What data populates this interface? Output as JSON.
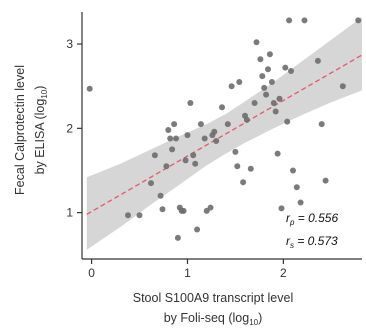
{
  "chart_data": {
    "type": "scatter",
    "xlabel_line1": "Stool S100A9 transcript level",
    "xlabel_line2": "by Foli-seq (log",
    "xlabel_sub": "10",
    "ylabel_line1": "Fecal Calprotectin level",
    "ylabel_line2": "by ELISA (log",
    "ylabel_sub": "10",
    "label_close": ")",
    "xlim": [
      -0.1,
      2.82
    ],
    "ylim": [
      0.45,
      3.38
    ],
    "x_ticks": [
      0,
      1,
      2
    ],
    "y_ticks": [
      1,
      2,
      3
    ],
    "grid": false,
    "points": [
      {
        "x": -0.02,
        "y": 2.47
      },
      {
        "x": 0.38,
        "y": 0.97
      },
      {
        "x": 0.5,
        "y": 0.97
      },
      {
        "x": 0.62,
        "y": 1.35
      },
      {
        "x": 0.66,
        "y": 1.68
      },
      {
        "x": 0.72,
        "y": 1.2
      },
      {
        "x": 0.74,
        "y": 1.04
      },
      {
        "x": 0.78,
        "y": 1.55
      },
      {
        "x": 0.8,
        "y": 1.98
      },
      {
        "x": 0.82,
        "y": 1.88
      },
      {
        "x": 0.84,
        "y": 1.75
      },
      {
        "x": 0.86,
        "y": 2.05
      },
      {
        "x": 0.88,
        "y": 1.88
      },
      {
        "x": 0.9,
        "y": 0.7
      },
      {
        "x": 0.92,
        "y": 1.06
      },
      {
        "x": 0.94,
        "y": 1.02
      },
      {
        "x": 0.96,
        "y": 1.02
      },
      {
        "x": 0.98,
        "y": 1.62
      },
      {
        "x": 1.0,
        "y": 1.92
      },
      {
        "x": 1.03,
        "y": 2.3
      },
      {
        "x": 1.06,
        "y": 1.68
      },
      {
        "x": 1.08,
        "y": 1.58
      },
      {
        "x": 1.1,
        "y": 0.8
      },
      {
        "x": 1.14,
        "y": 2.05
      },
      {
        "x": 1.18,
        "y": 1.88
      },
      {
        "x": 1.2,
        "y": 1.02
      },
      {
        "x": 1.24,
        "y": 1.06
      },
      {
        "x": 1.26,
        "y": 1.92
      },
      {
        "x": 1.28,
        "y": 1.96
      },
      {
        "x": 1.3,
        "y": 1.85
      },
      {
        "x": 1.36,
        "y": 2.25
      },
      {
        "x": 1.42,
        "y": 2.05
      },
      {
        "x": 1.46,
        "y": 2.5
      },
      {
        "x": 1.5,
        "y": 1.72
      },
      {
        "x": 1.52,
        "y": 1.55
      },
      {
        "x": 1.54,
        "y": 2.55
      },
      {
        "x": 1.58,
        "y": 1.36
      },
      {
        "x": 1.6,
        "y": 2.15
      },
      {
        "x": 1.62,
        "y": 2.1
      },
      {
        "x": 1.66,
        "y": 1.52
      },
      {
        "x": 1.7,
        "y": 2.3
      },
      {
        "x": 1.72,
        "y": 3.02
      },
      {
        "x": 1.76,
        "y": 2.82
      },
      {
        "x": 1.78,
        "y": 2.62
      },
      {
        "x": 1.8,
        "y": 2.48
      },
      {
        "x": 1.82,
        "y": 2.4
      },
      {
        "x": 1.84,
        "y": 2.7
      },
      {
        "x": 1.86,
        "y": 2.88
      },
      {
        "x": 1.88,
        "y": 2.55
      },
      {
        "x": 1.9,
        "y": 2.3
      },
      {
        "x": 1.92,
        "y": 2.2
      },
      {
        "x": 1.94,
        "y": 1.7
      },
      {
        "x": 1.96,
        "y": 2.35
      },
      {
        "x": 1.98,
        "y": 1.05
      },
      {
        "x": 2.02,
        "y": 2.72
      },
      {
        "x": 2.04,
        "y": 2.08
      },
      {
        "x": 2.06,
        "y": 3.28
      },
      {
        "x": 2.08,
        "y": 2.68
      },
      {
        "x": 2.1,
        "y": 1.5
      },
      {
        "x": 2.14,
        "y": 1.3
      },
      {
        "x": 2.18,
        "y": 1.12
      },
      {
        "x": 2.22,
        "y": 3.28
      },
      {
        "x": 2.36,
        "y": 2.8
      },
      {
        "x": 2.4,
        "y": 2.05
      },
      {
        "x": 2.44,
        "y": 1.38
      },
      {
        "x": 2.62,
        "y": 2.5
      },
      {
        "x": 2.78,
        "y": 3.28
      }
    ],
    "fit": {
      "x": [
        -0.05,
        2.82
      ],
      "y": [
        0.98,
        2.87
      ]
    },
    "band": {
      "x": [
        -0.05,
        0.3,
        0.6,
        0.9,
        1.2,
        1.4,
        1.6,
        1.9,
        2.2,
        2.5,
        2.82
      ],
      "upper": [
        1.42,
        1.58,
        1.74,
        1.9,
        2.05,
        2.17,
        2.32,
        2.55,
        2.8,
        3.05,
        3.32
      ],
      "lower": [
        0.56,
        0.83,
        1.08,
        1.32,
        1.56,
        1.7,
        1.83,
        2.0,
        2.16,
        2.31,
        2.45
      ]
    },
    "annotations": [
      {
        "sym": "r",
        "sub": "p",
        "text": " = 0.556"
      },
      {
        "sym": "r",
        "sub": "s",
        "text": " = 0.573"
      }
    ],
    "colors": {
      "point": "#6d6d6d",
      "band": "#cfcfcf",
      "fit": "#e05a6a",
      "axis": "#333333"
    }
  }
}
